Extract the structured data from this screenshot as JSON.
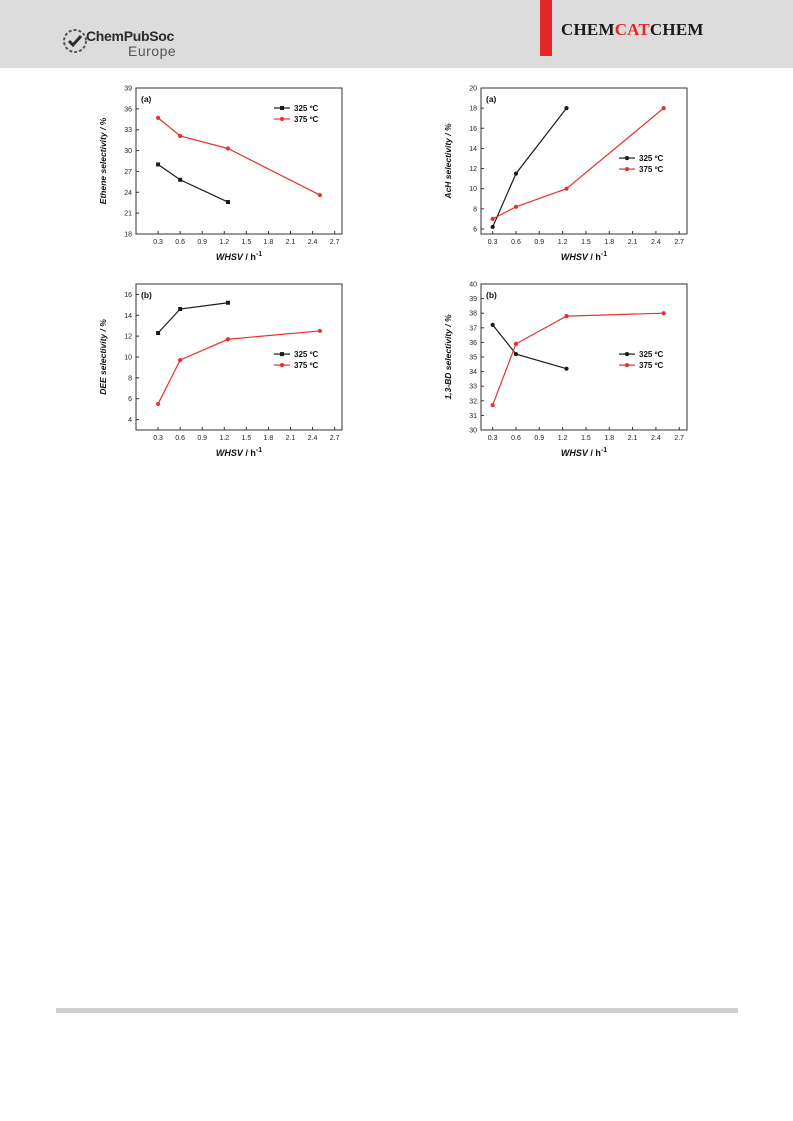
{
  "header": {
    "publisher_word1": "ChemPubSoc",
    "publisher_word2": "Europe",
    "journal_a": "CHEM",
    "journal_b": "CAT",
    "journal_c": "CHEM",
    "accent_color": "#e3262a"
  },
  "chart_data": [
    {
      "type": "line",
      "panel_label": "(a)",
      "xlabel_italic": "WHSV",
      "xlabel_unit": " / h",
      "xlabel_sup": "-1",
      "ylabel": "Ethene selectivity / %",
      "xlim": [
        0.0,
        2.8
      ],
      "ylim": [
        18,
        39
      ],
      "xticks": [
        "0.3",
        "0.6",
        "0.9",
        "1.2",
        "1.5",
        "1.8",
        "2.1",
        "2.4",
        "2.7"
      ],
      "yticks": [
        "18",
        "21",
        "24",
        "27",
        "30",
        "33",
        "36",
        "39"
      ],
      "legend_position": "top-right",
      "series": [
        {
          "name": "325 ºC",
          "color": "#1a1a1a",
          "marker": "square",
          "x": [
            0.3,
            0.6,
            1.25
          ],
          "y": [
            28.0,
            25.8,
            22.6
          ]
        },
        {
          "name": "375 ºC",
          "color": "#e8312e",
          "marker": "circle",
          "x": [
            0.3,
            0.6,
            1.25,
            2.5
          ],
          "y": [
            34.7,
            32.1,
            30.3,
            23.6
          ]
        }
      ]
    },
    {
      "type": "line",
      "panel_label": "(a)",
      "xlabel_italic": "WHSV",
      "xlabel_unit": " / h",
      "xlabel_sup": "-1",
      "ylabel": "AcH selectivity / %",
      "xlim": [
        0.15,
        2.8
      ],
      "ylim": [
        5.5,
        20
      ],
      "xticks": [
        "0.3",
        "0.6",
        "0.9",
        "1.2",
        "1.5",
        "1.8",
        "2.1",
        "2.4",
        "2.7"
      ],
      "yticks": [
        "6",
        "8",
        "10",
        "12",
        "14",
        "16",
        "18",
        "20"
      ],
      "legend_position": "right",
      "series": [
        {
          "name": "325 ºC",
          "color": "#1a1a1a",
          "marker": "circle",
          "x": [
            0.3,
            0.6,
            1.25
          ],
          "y": [
            6.2,
            11.5,
            18.0
          ]
        },
        {
          "name": "375 ºC",
          "color": "#e8312e",
          "marker": "circle",
          "x": [
            0.3,
            0.6,
            1.25,
            2.5
          ],
          "y": [
            7.0,
            8.2,
            10.0,
            18.0
          ]
        }
      ]
    },
    {
      "type": "line",
      "panel_label": "(b)",
      "xlabel_italic": "WHSV",
      "xlabel_unit": " / h",
      "xlabel_sup": "-1",
      "ylabel": "DEE selectivity / %",
      "xlim": [
        0.0,
        2.8
      ],
      "ylim": [
        3,
        17
      ],
      "xticks": [
        "0.3",
        "0.6",
        "0.9",
        "1.2",
        "1.5",
        "1.8",
        "2.1",
        "2.4",
        "2.7"
      ],
      "yticks": [
        "4",
        "6",
        "8",
        "10",
        "12",
        "14",
        "16"
      ],
      "legend_position": "right",
      "series": [
        {
          "name": "325 ºC",
          "color": "#1a1a1a",
          "marker": "square",
          "x": [
            0.3,
            0.6,
            1.25
          ],
          "y": [
            12.3,
            14.6,
            15.2
          ]
        },
        {
          "name": "375 ºC",
          "color": "#e8312e",
          "marker": "circle",
          "x": [
            0.3,
            0.6,
            1.25,
            2.5
          ],
          "y": [
            5.5,
            9.7,
            11.7,
            12.5
          ]
        }
      ]
    },
    {
      "type": "line",
      "panel_label": "(b)",
      "xlabel_italic": "WHSV",
      "xlabel_unit": " / h",
      "xlabel_sup": "-1",
      "ylabel": "1,3-BD selectivity / %",
      "xlim": [
        0.15,
        2.8
      ],
      "ylim": [
        30,
        40
      ],
      "xticks": [
        "0.3",
        "0.6",
        "0.9",
        "1.2",
        "1.5",
        "1.8",
        "2.1",
        "2.4",
        "2.7"
      ],
      "yticks": [
        "30",
        "31",
        "32",
        "33",
        "34",
        "35",
        "36",
        "37",
        "38",
        "39",
        "40"
      ],
      "legend_position": "right",
      "series": [
        {
          "name": "325 ºC",
          "color": "#1a1a1a",
          "marker": "circle",
          "x": [
            0.3,
            0.6,
            1.25
          ],
          "y": [
            37.2,
            35.2,
            34.2
          ]
        },
        {
          "name": "375 ºC",
          "color": "#e8312e",
          "marker": "circle",
          "x": [
            0.3,
            0.6,
            1.25,
            2.5
          ],
          "y": [
            31.7,
            35.9,
            37.8,
            38.0
          ]
        }
      ]
    }
  ]
}
